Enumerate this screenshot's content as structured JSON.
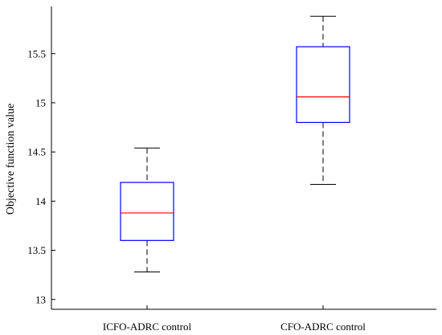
{
  "chart_data": {
    "type": "box",
    "title": "",
    "xlabel": "",
    "ylabel": "Objective function value",
    "ylim": [
      12.9,
      15.98
    ],
    "yticks": [
      13,
      13.5,
      14,
      14.5,
      15,
      15.5
    ],
    "ytick_labels": [
      "13",
      "13.5",
      "14",
      "14.5",
      "15",
      "15.5"
    ],
    "grid": false,
    "colors": {
      "box": "#0000ff",
      "median": "#ff0000",
      "whisker": "#000000",
      "axis": "#000000"
    },
    "categories": [
      "ICFO-ADRC control",
      "CFO-ADRC control"
    ],
    "boxes": [
      {
        "category": "ICFO-ADRC control",
        "min": 13.28,
        "q1": 13.6,
        "median": 13.88,
        "q3": 14.19,
        "max": 14.54
      },
      {
        "category": "CFO-ADRC control",
        "min": 14.17,
        "q1": 14.8,
        "median": 15.06,
        "q3": 15.57,
        "max": 15.88
      }
    ]
  }
}
